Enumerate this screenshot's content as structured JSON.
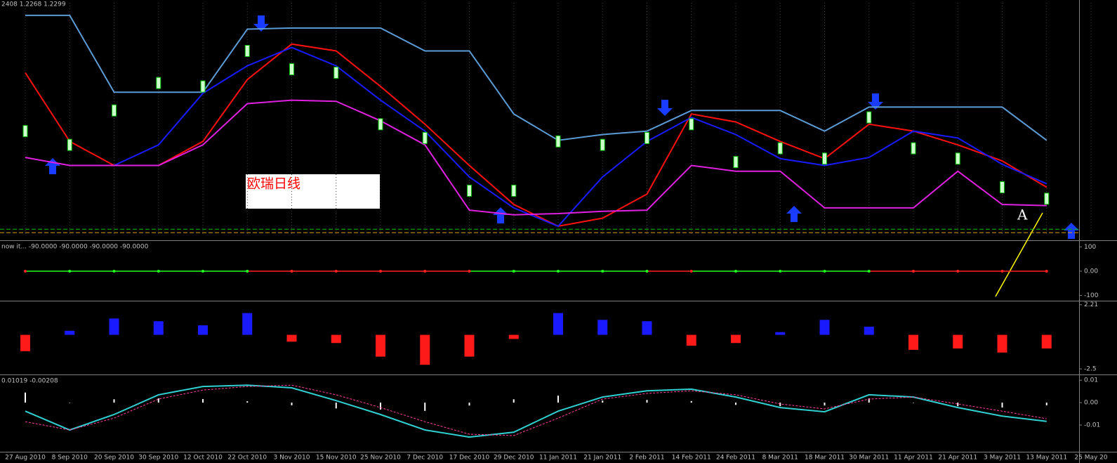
{
  "chart_data": [
    {
      "type": "line",
      "title": "2408 1.2268 1.2299",
      "ylim": [
        1.22,
        1.423
      ],
      "grid": true,
      "series": [
        {
          "name": "upper",
          "color": "#5b9bd5",
          "style": "solid",
          "values": [
            1.412,
            1.412,
            1.345,
            1.345,
            1.345,
            1.4,
            1.401,
            1.401,
            1.401,
            1.381,
            1.381,
            1.326,
            1.303,
            1.308,
            1.311,
            1.329,
            1.329,
            1.329,
            1.311,
            1.332,
            1.332,
            1.332,
            1.332,
            1.303,
            null
          ]
        },
        {
          "name": "red",
          "color": "#ff1010",
          "style": "solid",
          "values": [
            1.362,
            1.302,
            1.281,
            1.281,
            1.302,
            1.356,
            1.387,
            1.381,
            1.35,
            1.317,
            1.281,
            1.247,
            1.228,
            1.235,
            1.256,
            1.326,
            1.319,
            1.302,
            1.287,
            1.317,
            1.311,
            1.299,
            1.285,
            1.262,
            null
          ]
        },
        {
          "name": "blue",
          "color": "#1a1aff",
          "style": "solid",
          "values": [
            null,
            null,
            1.281,
            1.299,
            1.344,
            1.368,
            1.384,
            1.368,
            1.338,
            1.311,
            1.271,
            1.244,
            1.228,
            1.271,
            1.302,
            1.323,
            1.308,
            1.287,
            1.281,
            1.288,
            1.311,
            1.305,
            1.282,
            1.265,
            null
          ]
        },
        {
          "name": "lower",
          "color": "#e020e0",
          "style": "solid",
          "values": [
            1.288,
            1.281,
            1.281,
            1.281,
            1.299,
            1.335,
            1.338,
            1.337,
            1.32,
            1.299,
            1.242,
            1.238,
            1.239,
            1.241,
            1.242,
            1.281,
            1.276,
            1.276,
            1.244,
            1.244,
            1.244,
            1.276,
            1.247,
            1.246,
            null
          ]
        },
        {
          "name": "close",
          "color": "#ccffcc",
          "style": "candles",
          "values": [
            1.311,
            1.299,
            1.329,
            1.353,
            1.35,
            1.381,
            1.365,
            1.362,
            1.317,
            1.305,
            1.259,
            1.259,
            1.302,
            1.299,
            1.305,
            1.317,
            1.284,
            1.296,
            1.287,
            1.323,
            1.296,
            1.287,
            1.262,
            1.252,
            null
          ]
        }
      ],
      "levels": [
        {
          "value": 1.2254,
          "color": "#00c000"
        },
        {
          "value": 1.2224,
          "color": "#e0a000"
        }
      ],
      "annotations": [
        "欧瑞日线",
        "A"
      ]
    },
    {
      "type": "line",
      "title": "now it... -90.0000 -90.0000 -90.0000 -90.0000",
      "ylim": [
        -110,
        110
      ],
      "yticks": [
        100,
        {
          "value": 0,
          "label": "0.00"
        },
        -100
      ],
      "grid": false,
      "series": [
        {
          "name": "signal",
          "color": "#ff2020",
          "style": "dots",
          "colors": [
            "#ff2020",
            "#20ff20",
            "#20ff20",
            "#20ff20",
            "#20ff20",
            "#20ff20",
            "#ff2020",
            "#ff2020",
            "#ff2020",
            "#ff2020",
            "#ff2020",
            "#20ff20",
            "#20ff20",
            "#20ff20",
            "#20ff20",
            "#ff2020",
            "#20ff20",
            "#20ff20",
            "#20ff20",
            "#20ff20",
            "#ff2020",
            "#ff2020",
            "#ff2020",
            "#ff2020",
            "#ff2020"
          ],
          "values": [
            0,
            0,
            0,
            0,
            0,
            0,
            0,
            0,
            0,
            0,
            0,
            0,
            0,
            0,
            0,
            0,
            0,
            0,
            0,
            0,
            0,
            0,
            0,
            0,
            null
          ]
        }
      ]
    },
    {
      "type": "bar",
      "ylim": [
        -2.6,
        2.3
      ],
      "yticks": [
        2.21,
        -2.5
      ],
      "grid": false,
      "colors": {
        "positive": "#1a1aff",
        "negative": "#ff1a1a"
      },
      "values": [
        -1.2,
        0.3,
        1.2,
        1.0,
        0.7,
        1.6,
        -0.5,
        -0.6,
        -1.6,
        -2.2,
        -1.6,
        -0.3,
        1.6,
        1.1,
        1.0,
        -0.8,
        -0.6,
        0.2,
        1.1,
        0.6,
        -1.1,
        -1.0,
        -1.3,
        -1.0,
        null
      ]
    },
    {
      "type": "line",
      "title": "0.01019 -0.00208",
      "ylim": [
        -0.021,
        0.011
      ],
      "yticks": [
        0.01,
        {
          "value": 0,
          "label": "0.00"
        },
        -0.01
      ],
      "grid": false,
      "categories": [
        "27 Aug 2010",
        "8 Sep 2010",
        "20 Sep 2010",
        "30 Sep 2010",
        "12 Oct 2010",
        "22 Oct 2010",
        "3 Nov 2010",
        "15 Nov 2010",
        "25 Nov 2010",
        "7 Dec 2010",
        "17 Dec 2010",
        "29 Dec 2010",
        "11 Jan 2011",
        "21 Jan 2011",
        "2 Feb 2011",
        "14 Feb 2011",
        "24 Feb 2011",
        "8 Mar 2011",
        "18 Mar 2011",
        "30 Mar 2011",
        "11 Apr 2011",
        "21 Apr 2011",
        "3 May 2011",
        "13 May 2011",
        "25 May 20"
      ],
      "series": [
        {
          "name": "histogram",
          "color": "#ffffff",
          "style": "bars",
          "values": [
            0.0045,
            0.0,
            0.0015,
            0.0019,
            0.0016,
            0.0006,
            -0.0012,
            -0.0026,
            -0.0031,
            -0.0037,
            -0.0013,
            0.0015,
            0.0031,
            0.0009,
            0.0012,
            0.0007,
            -0.001,
            -0.0016,
            -0.0013,
            0.0019,
            0.0,
            -0.0016,
            -0.0022,
            -0.0012,
            null
          ]
        },
        {
          "name": "main",
          "color": "#30d0d0",
          "style": "solid",
          "values": [
            -0.0038,
            -0.0122,
            -0.0053,
            0.0035,
            0.0072,
            0.0078,
            0.0066,
            0.0009,
            -0.0053,
            -0.0122,
            -0.0154,
            -0.0132,
            -0.0038,
            0.0025,
            0.0053,
            0.006,
            0.0025,
            -0.0022,
            -0.0041,
            0.0035,
            0.0025,
            -0.0022,
            -0.006,
            -0.0084,
            null
          ]
        },
        {
          "name": "signal",
          "color": "#ff40a0",
          "style": "dashed",
          "values": [
            -0.0085,
            -0.0122,
            -0.0069,
            0.0016,
            0.0056,
            0.0072,
            0.0078,
            0.0035,
            -0.0022,
            -0.0085,
            -0.0141,
            -0.0147,
            -0.0069,
            0.0016,
            0.0041,
            0.0053,
            0.0035,
            -0.0006,
            -0.0028,
            0.0016,
            0.0025,
            -0.0006,
            -0.0038,
            -0.0072,
            null
          ]
        }
      ]
    }
  ]
}
